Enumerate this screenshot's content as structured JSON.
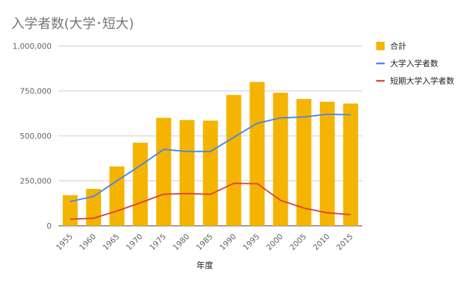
{
  "chart_data": {
    "type": "bar",
    "title": "入学者数(大学･短大)",
    "xlabel": "年度",
    "ylabel": "",
    "categories": [
      "1955",
      "1960",
      "1965",
      "1970",
      "1975",
      "1980",
      "1985",
      "1990",
      "1995",
      "2000",
      "2005",
      "2010",
      "2015"
    ],
    "ylim": [
      0,
      1000000
    ],
    "yticks": [
      0,
      250000,
      500000,
      750000,
      1000000
    ],
    "ytick_labels": [
      "0",
      "250,000",
      "500,000",
      "750,000",
      "1,000,000"
    ],
    "grid": true,
    "legend_position": "right",
    "series": [
      {
        "name": "合計",
        "kind": "bar",
        "color": "#f4b400",
        "values": [
          170000,
          205000,
          330000,
          462000,
          600000,
          588000,
          585000,
          728000,
          800000,
          740000,
          705000,
          690000,
          680000
        ]
      },
      {
        "name": "大学入学者数",
        "kind": "line",
        "color": "#4a86e8",
        "values": [
          135000,
          163000,
          250000,
          335000,
          425000,
          413000,
          413000,
          492000,
          570000,
          600000,
          605000,
          620000,
          618000
        ]
      },
      {
        "name": "短期大学入学者数",
        "kind": "line",
        "color": "#db4437",
        "values": [
          37000,
          42000,
          82000,
          128000,
          176000,
          179000,
          175000,
          236000,
          234000,
          142000,
          98000,
          72000,
          62000
        ]
      }
    ]
  }
}
